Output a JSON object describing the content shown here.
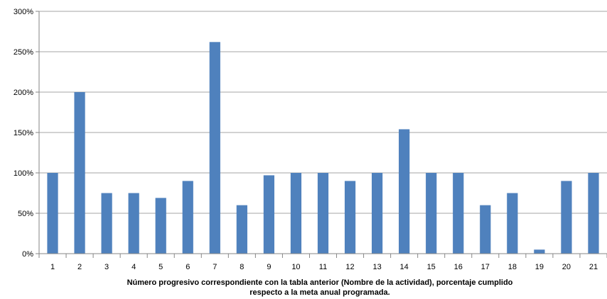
{
  "chart_data": {
    "type": "bar",
    "title": "",
    "xlabel": "Número progresivo correspondiente con la tabla anterior (Nombre de la actividad), porcentaje cumplido respecto a la meta anual programada.",
    "xlabel_lines": [
      "Número progresivo correspondiente con la tabla anterior (Nombre de la actividad), porcentaje cumplido",
      "respecto a la meta anual programada."
    ],
    "ylabel": "",
    "y_tick_labels": [
      "0%",
      "50%",
      "100%",
      "150%",
      "200%",
      "250%",
      "300%"
    ],
    "y_ticks": [
      0,
      50,
      100,
      150,
      200,
      250,
      300
    ],
    "ylim": [
      0,
      300
    ],
    "grid": true,
    "legend": "none",
    "categories": [
      "1",
      "2",
      "3",
      "4",
      "5",
      "6",
      "7",
      "8",
      "9",
      "10",
      "11",
      "12",
      "13",
      "14",
      "15",
      "16",
      "17",
      "18",
      "19",
      "20",
      "21"
    ],
    "values": [
      100,
      200,
      75,
      75,
      69,
      90,
      262,
      60,
      97,
      100,
      100,
      90,
      100,
      154,
      100,
      100,
      60,
      75,
      5,
      90,
      100
    ],
    "colors": {
      "bar": "#4F81BD",
      "grid": "#868686",
      "axis": "#868686"
    }
  }
}
